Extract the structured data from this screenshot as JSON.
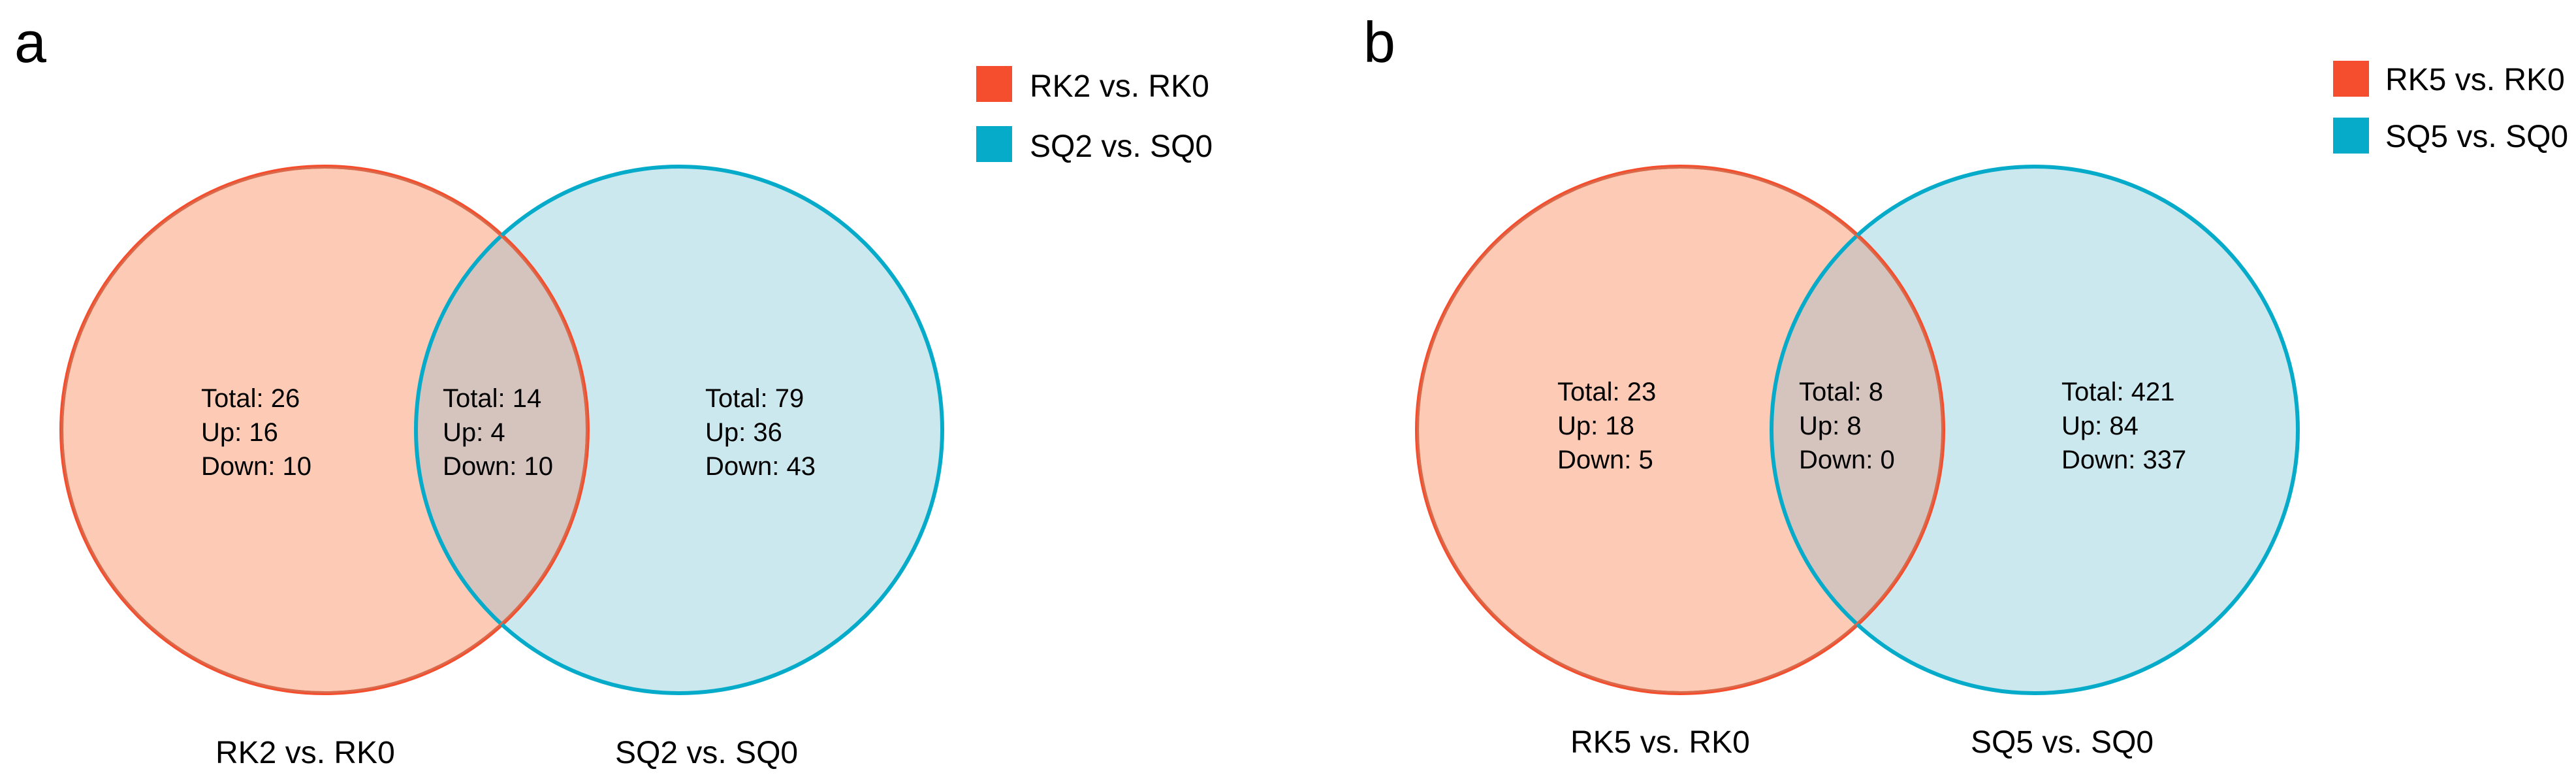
{
  "colors": {
    "red_stroke": "#f44e2e",
    "red_fill": "#fdcab5",
    "blue_stroke": "#07abca",
    "blue_fill": "#cce8ef",
    "overlap_fill": "#d5c3bd",
    "overlap_stroke": "#d86a4b",
    "legend_red": "#f44e2e",
    "legend_blue": "#07abca"
  },
  "panels": [
    {
      "letter": "a",
      "legend": [
        "RK2 vs. RK0",
        "SQ2 vs. SQ0"
      ],
      "left_set": {
        "label": "RK2 vs. RK0",
        "total": "Total: 26",
        "up": "Up: 16",
        "down": "Down: 10"
      },
      "overlap": {
        "total": "Total: 14",
        "up": "Up: 4",
        "down": "Down: 10"
      },
      "right_set": {
        "label": "SQ2 vs. SQ0",
        "total": "Total: 79",
        "up": "Up: 36",
        "down": "Down: 43"
      }
    },
    {
      "letter": "b",
      "legend": [
        "RK5 vs. RK0",
        "SQ5 vs. SQ0"
      ],
      "left_set": {
        "label": "RK5 vs. RK0",
        "total": "Total: 23",
        "up": "Up: 18",
        "down": "Down: 5"
      },
      "overlap": {
        "total": "Total: 8",
        "up": "Up: 8",
        "down": "Down: 0"
      },
      "right_set": {
        "label": "SQ5 vs. SQ0",
        "total": "Total: 421",
        "up": "Up: 84",
        "down": "Down: 337"
      }
    }
  ]
}
